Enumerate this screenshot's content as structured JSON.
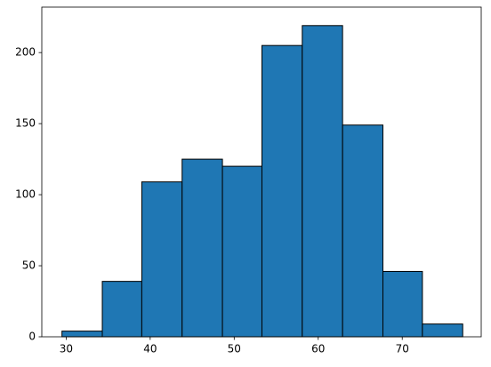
{
  "chart_data": {
    "type": "histogram",
    "bins": [
      29.5,
      34.3,
      39.0,
      43.8,
      48.6,
      53.3,
      58.1,
      62.9,
      67.7,
      72.4,
      77.2
    ],
    "counts": [
      4,
      39,
      109,
      125,
      120,
      205,
      219,
      149,
      46,
      9
    ],
    "color": "#1f77b4",
    "edgecolor": "#000000",
    "xlim": [
      27.1,
      79.4
    ],
    "xticks": [
      30,
      40,
      50,
      60,
      70
    ],
    "ylim": [
      0,
      232
    ],
    "yticks": [
      0,
      50,
      100,
      150,
      200
    ],
    "grid": false
  }
}
